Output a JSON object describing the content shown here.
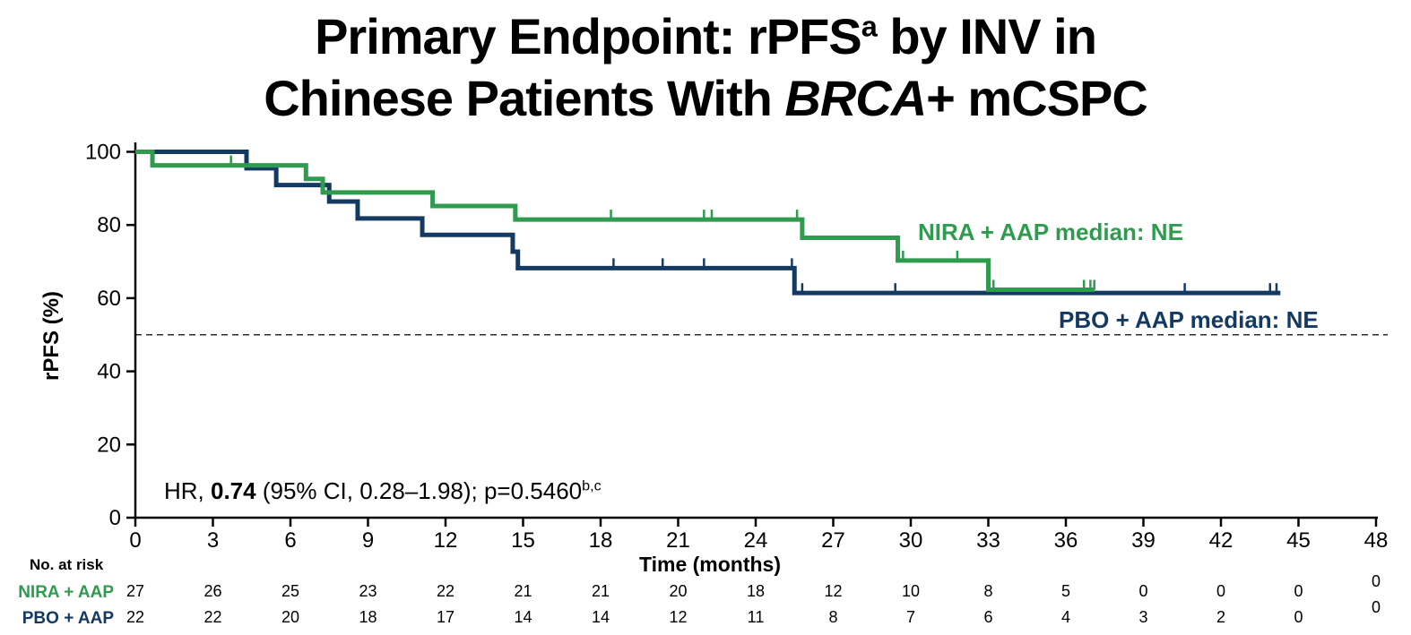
{
  "title": {
    "line1_pre": "Primary Endpoint: rPFS",
    "line1_sup": "a",
    "line1_post": " by INV in",
    "line2_pre": "Chinese Patients With ",
    "line2_italic": "BRCA",
    "line2_post": "+ mCSPC"
  },
  "axis": {
    "x_label": "Time (months)",
    "y_label": "rPFS (%)"
  },
  "annotations": {
    "hr_pre": "HR, ",
    "hr_bold": "0.74",
    "hr_post": " (95% CI, 0.28–1.98); p=0.5460",
    "hr_sup": "b,c"
  },
  "colors": {
    "nira_green": "#2E9B4E",
    "pbo_navy": "#143A64",
    "axis_black": "#000000",
    "reference_dash": "#2b2b2b"
  },
  "chart_data": {
    "type": "line",
    "subtype": "kaplan_meier_step",
    "title": "Primary Endpoint: rPFS(a) by INV in Chinese Patients With BRCA+ mCSPC",
    "xlabel": "Time (months)",
    "ylabel": "rPFS (%)",
    "xlim": [
      0,
      48
    ],
    "ylim": [
      0,
      100
    ],
    "xticks": [
      0,
      3,
      6,
      9,
      12,
      15,
      18,
      21,
      24,
      27,
      30,
      33,
      36,
      39,
      42,
      45,
      48
    ],
    "yticks": [
      0,
      20,
      40,
      60,
      80,
      100
    ],
    "grid": false,
    "reference_line_y": 50,
    "legend_position": "inline-curve-labels",
    "hr_annotation": "HR, 0.74 (95% CI, 0.28-1.98); p=0.5460 (b,c)",
    "series": [
      {
        "id": "pbo_aap",
        "name": "PBO + AAP",
        "color": "#143A64",
        "median": "NE",
        "median_label": "PBO + AAP median: NE",
        "points": [
          [
            0,
            100
          ],
          [
            4.3,
            100
          ],
          [
            4.3,
            95.5
          ],
          [
            5.45,
            95.5
          ],
          [
            5.45,
            90.9
          ],
          [
            7.5,
            90.9
          ],
          [
            7.5,
            86.4
          ],
          [
            8.6,
            86.4
          ],
          [
            8.6,
            81.8
          ],
          [
            11.1,
            81.8
          ],
          [
            11.1,
            77.3
          ],
          [
            14.6,
            77.3
          ],
          [
            14.6,
            72.7
          ],
          [
            14.8,
            72.7
          ],
          [
            14.8,
            68.2
          ],
          [
            25.5,
            68.2
          ],
          [
            25.5,
            61.4
          ],
          [
            44.3,
            61.4
          ]
        ],
        "censor_marks": [
          [
            18.5,
            68.2
          ],
          [
            20.4,
            68.2
          ],
          [
            22.0,
            68.2
          ],
          [
            25.4,
            68.2
          ],
          [
            25.8,
            61.4
          ],
          [
            29.4,
            61.4
          ],
          [
            40.6,
            61.4
          ],
          [
            43.9,
            61.4
          ],
          [
            44.15,
            61.4
          ]
        ]
      },
      {
        "id": "nira_aap",
        "name": "NIRA + AAP",
        "color": "#2E9B4E",
        "median": "NE",
        "median_label": "NIRA + AAP median: NE",
        "points": [
          [
            0,
            100
          ],
          [
            0.66,
            100
          ],
          [
            0.66,
            96.3
          ],
          [
            6.6,
            96.3
          ],
          [
            6.6,
            92.6
          ],
          [
            7.25,
            92.6
          ],
          [
            7.25,
            88.9
          ],
          [
            11.5,
            88.9
          ],
          [
            11.5,
            85.2
          ],
          [
            14.7,
            85.2
          ],
          [
            14.7,
            81.5
          ],
          [
            25.8,
            81.5
          ],
          [
            25.8,
            76.5
          ],
          [
            29.5,
            76.5
          ],
          [
            29.5,
            70.3
          ],
          [
            33.0,
            70.3
          ],
          [
            33.0,
            62.3
          ],
          [
            37.1,
            62.3
          ]
        ],
        "censor_marks": [
          [
            3.7,
            96.3
          ],
          [
            18.4,
            81.5
          ],
          [
            22.0,
            81.5
          ],
          [
            22.3,
            81.5
          ],
          [
            25.6,
            81.5
          ],
          [
            29.7,
            70.3
          ],
          [
            31.8,
            70.3
          ],
          [
            33.2,
            62.3
          ],
          [
            36.7,
            62.3
          ],
          [
            36.95,
            62.3
          ],
          [
            37.1,
            62.3
          ]
        ]
      }
    ]
  },
  "risk_table": {
    "heading": "No. at risk",
    "times": [
      0,
      3,
      6,
      9,
      12,
      15,
      18,
      21,
      24,
      27,
      30,
      33,
      36,
      39,
      42,
      45,
      48
    ],
    "rows": [
      {
        "label": "NIRA + AAP",
        "color": "#2E9B4E",
        "values": [
          27,
          26,
          25,
          23,
          22,
          21,
          21,
          20,
          18,
          12,
          10,
          8,
          5,
          0,
          0,
          0,
          0
        ]
      },
      {
        "label": "PBO + AAP",
        "color": "#143A64",
        "values": [
          22,
          22,
          20,
          18,
          17,
          14,
          14,
          12,
          11,
          8,
          7,
          6,
          4,
          3,
          2,
          0,
          0
        ]
      }
    ]
  }
}
